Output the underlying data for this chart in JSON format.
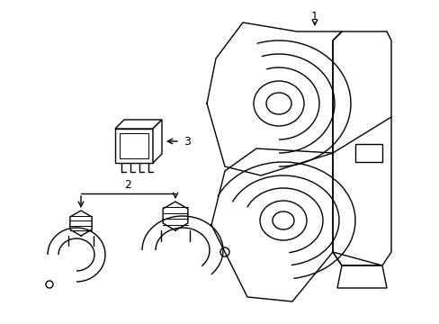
{
  "bg_color": "#ffffff",
  "line_color": "#000000",
  "lw": 1.0,
  "label_1": "1",
  "label_2": "2",
  "label_3": "3",
  "fig_width": 4.89,
  "fig_height": 3.6,
  "dpi": 100
}
